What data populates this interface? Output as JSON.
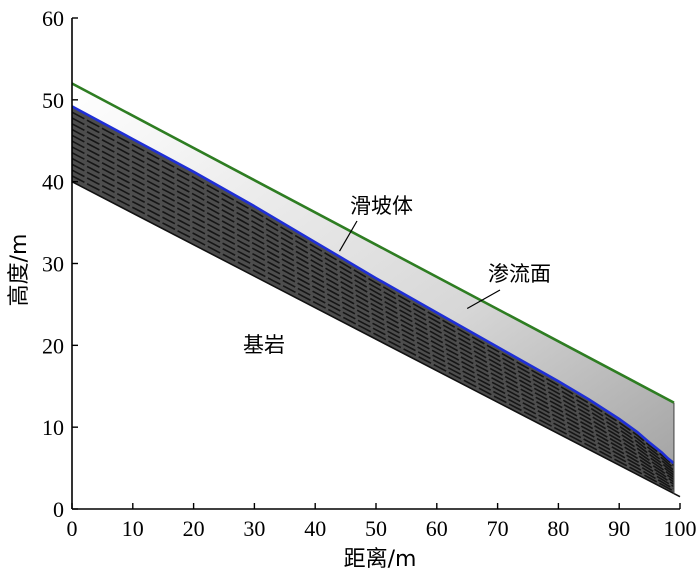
{
  "chart_data": {
    "type": "area",
    "xlabel": "距离/m",
    "ylabel": "高度/m",
    "xlim": [
      0,
      100
    ],
    "ylim": [
      0,
      60
    ],
    "xticks": [
      0,
      10,
      20,
      30,
      40,
      50,
      60,
      70,
      80,
      90,
      100
    ],
    "yticks": [
      0,
      10,
      20,
      30,
      40,
      50,
      60
    ],
    "grid": false,
    "series": [
      {
        "role": "slope-surface",
        "color": "#2e7d22",
        "x": [
          0,
          99
        ],
        "y": [
          52,
          13
        ]
      },
      {
        "role": "seepage-surface",
        "color": "#1f2fd6",
        "x": [
          0,
          10,
          20,
          30,
          40,
          50,
          60,
          70,
          80,
          85,
          90,
          93,
          95,
          97,
          98,
          99
        ],
        "y": [
          49.2,
          45.2,
          41.2,
          37.0,
          32.6,
          28.2,
          24.0,
          19.8,
          15.6,
          13.4,
          11.0,
          9.4,
          8.1,
          6.9,
          6.2,
          5.6
        ]
      },
      {
        "role": "bedrock-surface",
        "color": "#111111",
        "x": [
          0,
          100
        ],
        "y": [
          40,
          1.5
        ]
      }
    ],
    "annotations": [
      {
        "text": "滑坡体",
        "target_x": 44,
        "target_y": 31.5
      },
      {
        "text": "渗流面",
        "target_x": 65,
        "target_y": 24.5
      },
      {
        "text": "基岩"
      }
    ]
  }
}
